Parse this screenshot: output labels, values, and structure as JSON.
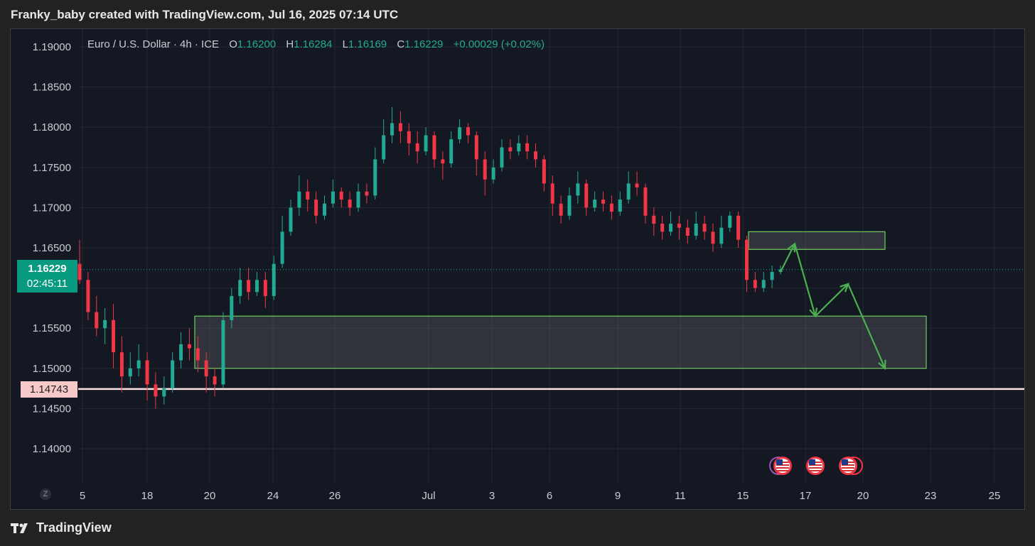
{
  "header": {
    "text": "Franky_baby created with TradingView.com, Jul 16, 2025 07:14 UTC"
  },
  "ticker": {
    "symbol": "Euro / U.S. Dollar · 4h · ICE",
    "o_label": "O",
    "o": "1.16200",
    "h_label": "H",
    "h": "1.16284",
    "l_label": "L",
    "l": "1.16169",
    "c_label": "C",
    "c": "1.16229",
    "change": "+0.00029 (+0.02%)"
  },
  "price_tag": {
    "price": "1.16229",
    "countdown": "02:45:11"
  },
  "level_tag": {
    "price": "1.14743"
  },
  "zoom_button": "Z",
  "footer": {
    "brand": "TradingView"
  },
  "colors": {
    "up": "#22ab94",
    "down": "#f23645",
    "background": "#141823",
    "zone_border": "#6fcf5f",
    "arrow": "#4caf50",
    "level_line": "#fbe2e2"
  },
  "chart_data": {
    "type": "candlestick",
    "ylim": [
      1.1355,
      1.1925
    ],
    "y_ticks": [
      "1.14000",
      "1.14500",
      "1.15000",
      "1.15500",
      "1.16000",
      "1.16500",
      "1.17000",
      "1.17500",
      "1.18000",
      "1.18500",
      "1.19000"
    ],
    "x_ticks": [
      "5",
      "18",
      "20",
      "24",
      "26",
      "Jul",
      "3",
      "6",
      "9",
      "11",
      "15",
      "17",
      "20",
      "23",
      "25"
    ],
    "grid": true,
    "last_price": 1.16229,
    "horizontal_level": 1.14743,
    "path_points": [
      [
        1.163,
        1.161,
        1.166,
        1.1605
      ],
      [
        1.161,
        1.157,
        1.162,
        1.156
      ],
      [
        1.157,
        1.155,
        1.159,
        1.154
      ],
      [
        1.155,
        1.156,
        1.1575,
        1.153
      ],
      [
        1.156,
        1.152,
        1.158,
        1.15
      ],
      [
        1.152,
        1.149,
        1.154,
        1.147
      ],
      [
        1.149,
        1.15,
        1.152,
        1.148
      ],
      [
        1.15,
        1.151,
        1.153,
        1.149
      ],
      [
        1.151,
        1.148,
        1.152,
        1.146
      ],
      [
        1.148,
        1.1465,
        1.1495,
        1.145
      ],
      [
        1.1465,
        1.1475,
        1.149,
        1.1455
      ],
      [
        1.1475,
        1.151,
        1.152,
        1.147
      ],
      [
        1.151,
        1.153,
        1.1545,
        1.15
      ],
      [
        1.153,
        1.1525,
        1.155,
        1.151
      ],
      [
        1.1525,
        1.151,
        1.154,
        1.1495
      ],
      [
        1.151,
        1.149,
        1.152,
        1.147
      ],
      [
        1.149,
        1.148,
        1.15,
        1.1465
      ],
      [
        1.148,
        1.156,
        1.157,
        1.1475
      ],
      [
        1.156,
        1.159,
        1.16,
        1.155
      ],
      [
        1.159,
        1.161,
        1.1625,
        1.158
      ],
      [
        1.161,
        1.1595,
        1.1625,
        1.1585
      ],
      [
        1.1595,
        1.161,
        1.162,
        1.159
      ],
      [
        1.161,
        1.159,
        1.162,
        1.1575
      ],
      [
        1.159,
        1.163,
        1.164,
        1.1585
      ],
      [
        1.163,
        1.167,
        1.169,
        1.1625
      ],
      [
        1.167,
        1.17,
        1.171,
        1.1665
      ],
      [
        1.17,
        1.172,
        1.174,
        1.169
      ],
      [
        1.172,
        1.171,
        1.1735,
        1.1695
      ],
      [
        1.171,
        1.169,
        1.172,
        1.168
      ],
      [
        1.169,
        1.1705,
        1.1715,
        1.1685
      ],
      [
        1.1705,
        1.172,
        1.1735,
        1.17
      ],
      [
        1.172,
        1.171,
        1.1725,
        1.17
      ],
      [
        1.171,
        1.17,
        1.172,
        1.169
      ],
      [
        1.17,
        1.172,
        1.173,
        1.1695
      ],
      [
        1.172,
        1.1715,
        1.173,
        1.1705
      ],
      [
        1.1715,
        1.176,
        1.1775,
        1.171
      ],
      [
        1.176,
        1.179,
        1.181,
        1.1755
      ],
      [
        1.179,
        1.1805,
        1.1825,
        1.178
      ],
      [
        1.1805,
        1.1795,
        1.182,
        1.178
      ],
      [
        1.1795,
        1.178,
        1.1805,
        1.1765
      ],
      [
        1.178,
        1.177,
        1.1795,
        1.1755
      ],
      [
        1.177,
        1.179,
        1.18,
        1.1765
      ],
      [
        1.179,
        1.176,
        1.1795,
        1.175
      ],
      [
        1.176,
        1.1755,
        1.177,
        1.1735
      ],
      [
        1.1755,
        1.1785,
        1.1795,
        1.175
      ],
      [
        1.1785,
        1.18,
        1.181,
        1.178
      ],
      [
        1.18,
        1.179,
        1.1805,
        1.178
      ],
      [
        1.179,
        1.176,
        1.1795,
        1.174
      ],
      [
        1.176,
        1.1735,
        1.177,
        1.1715
      ],
      [
        1.1735,
        1.175,
        1.176,
        1.173
      ],
      [
        1.175,
        1.1775,
        1.1785,
        1.1745
      ],
      [
        1.1775,
        1.177,
        1.1785,
        1.176
      ],
      [
        1.177,
        1.178,
        1.179,
        1.1765
      ],
      [
        1.178,
        1.177,
        1.179,
        1.176
      ],
      [
        1.177,
        1.176,
        1.178,
        1.175
      ],
      [
        1.176,
        1.173,
        1.1765,
        1.172
      ],
      [
        1.173,
        1.1705,
        1.174,
        1.169
      ],
      [
        1.1705,
        1.169,
        1.1715,
        1.168
      ],
      [
        1.169,
        1.1715,
        1.1725,
        1.1685
      ],
      [
        1.1715,
        1.173,
        1.1745,
        1.1705
      ],
      [
        1.173,
        1.17,
        1.1735,
        1.169
      ],
      [
        1.17,
        1.171,
        1.172,
        1.1695
      ],
      [
        1.171,
        1.1705,
        1.172,
        1.1695
      ],
      [
        1.1705,
        1.1695,
        1.1715,
        1.1685
      ],
      [
        1.1695,
        1.171,
        1.172,
        1.169
      ],
      [
        1.171,
        1.173,
        1.1745,
        1.1705
      ],
      [
        1.173,
        1.1725,
        1.1745,
        1.1715
      ],
      [
        1.1725,
        1.169,
        1.173,
        1.168
      ],
      [
        1.169,
        1.168,
        1.17,
        1.1665
      ],
      [
        1.168,
        1.167,
        1.169,
        1.166
      ],
      [
        1.167,
        1.168,
        1.1695,
        1.1665
      ],
      [
        1.168,
        1.1675,
        1.169,
        1.166
      ],
      [
        1.1675,
        1.1665,
        1.1685,
        1.1655
      ],
      [
        1.1665,
        1.168,
        1.1695,
        1.166
      ],
      [
        1.168,
        1.167,
        1.169,
        1.166
      ],
      [
        1.167,
        1.1655,
        1.168,
        1.1645
      ],
      [
        1.1655,
        1.1675,
        1.169,
        1.165
      ],
      [
        1.1675,
        1.169,
        1.1695,
        1.167
      ],
      [
        1.169,
        1.166,
        1.1695,
        1.165
      ],
      [
        1.166,
        1.161,
        1.1665,
        1.1595
      ],
      [
        1.161,
        1.16,
        1.162,
        1.1595
      ],
      [
        1.16,
        1.161,
        1.162,
        1.1595
      ],
      [
        1.161,
        1.162,
        1.1628,
        1.16
      ],
      [
        1.162,
        1.1623,
        1.1628,
        1.1617
      ]
    ],
    "zones": [
      {
        "from": "Jun 19",
        "to": "Jul 23",
        "low": 1.15,
        "high": 1.1565
      },
      {
        "from": "Jul 15",
        "to": "Jul 21",
        "low": 1.1648,
        "high": 1.167
      }
    ],
    "projection": [
      1.162,
      1.1655,
      1.1565,
      1.1605,
      1.15
    ]
  }
}
